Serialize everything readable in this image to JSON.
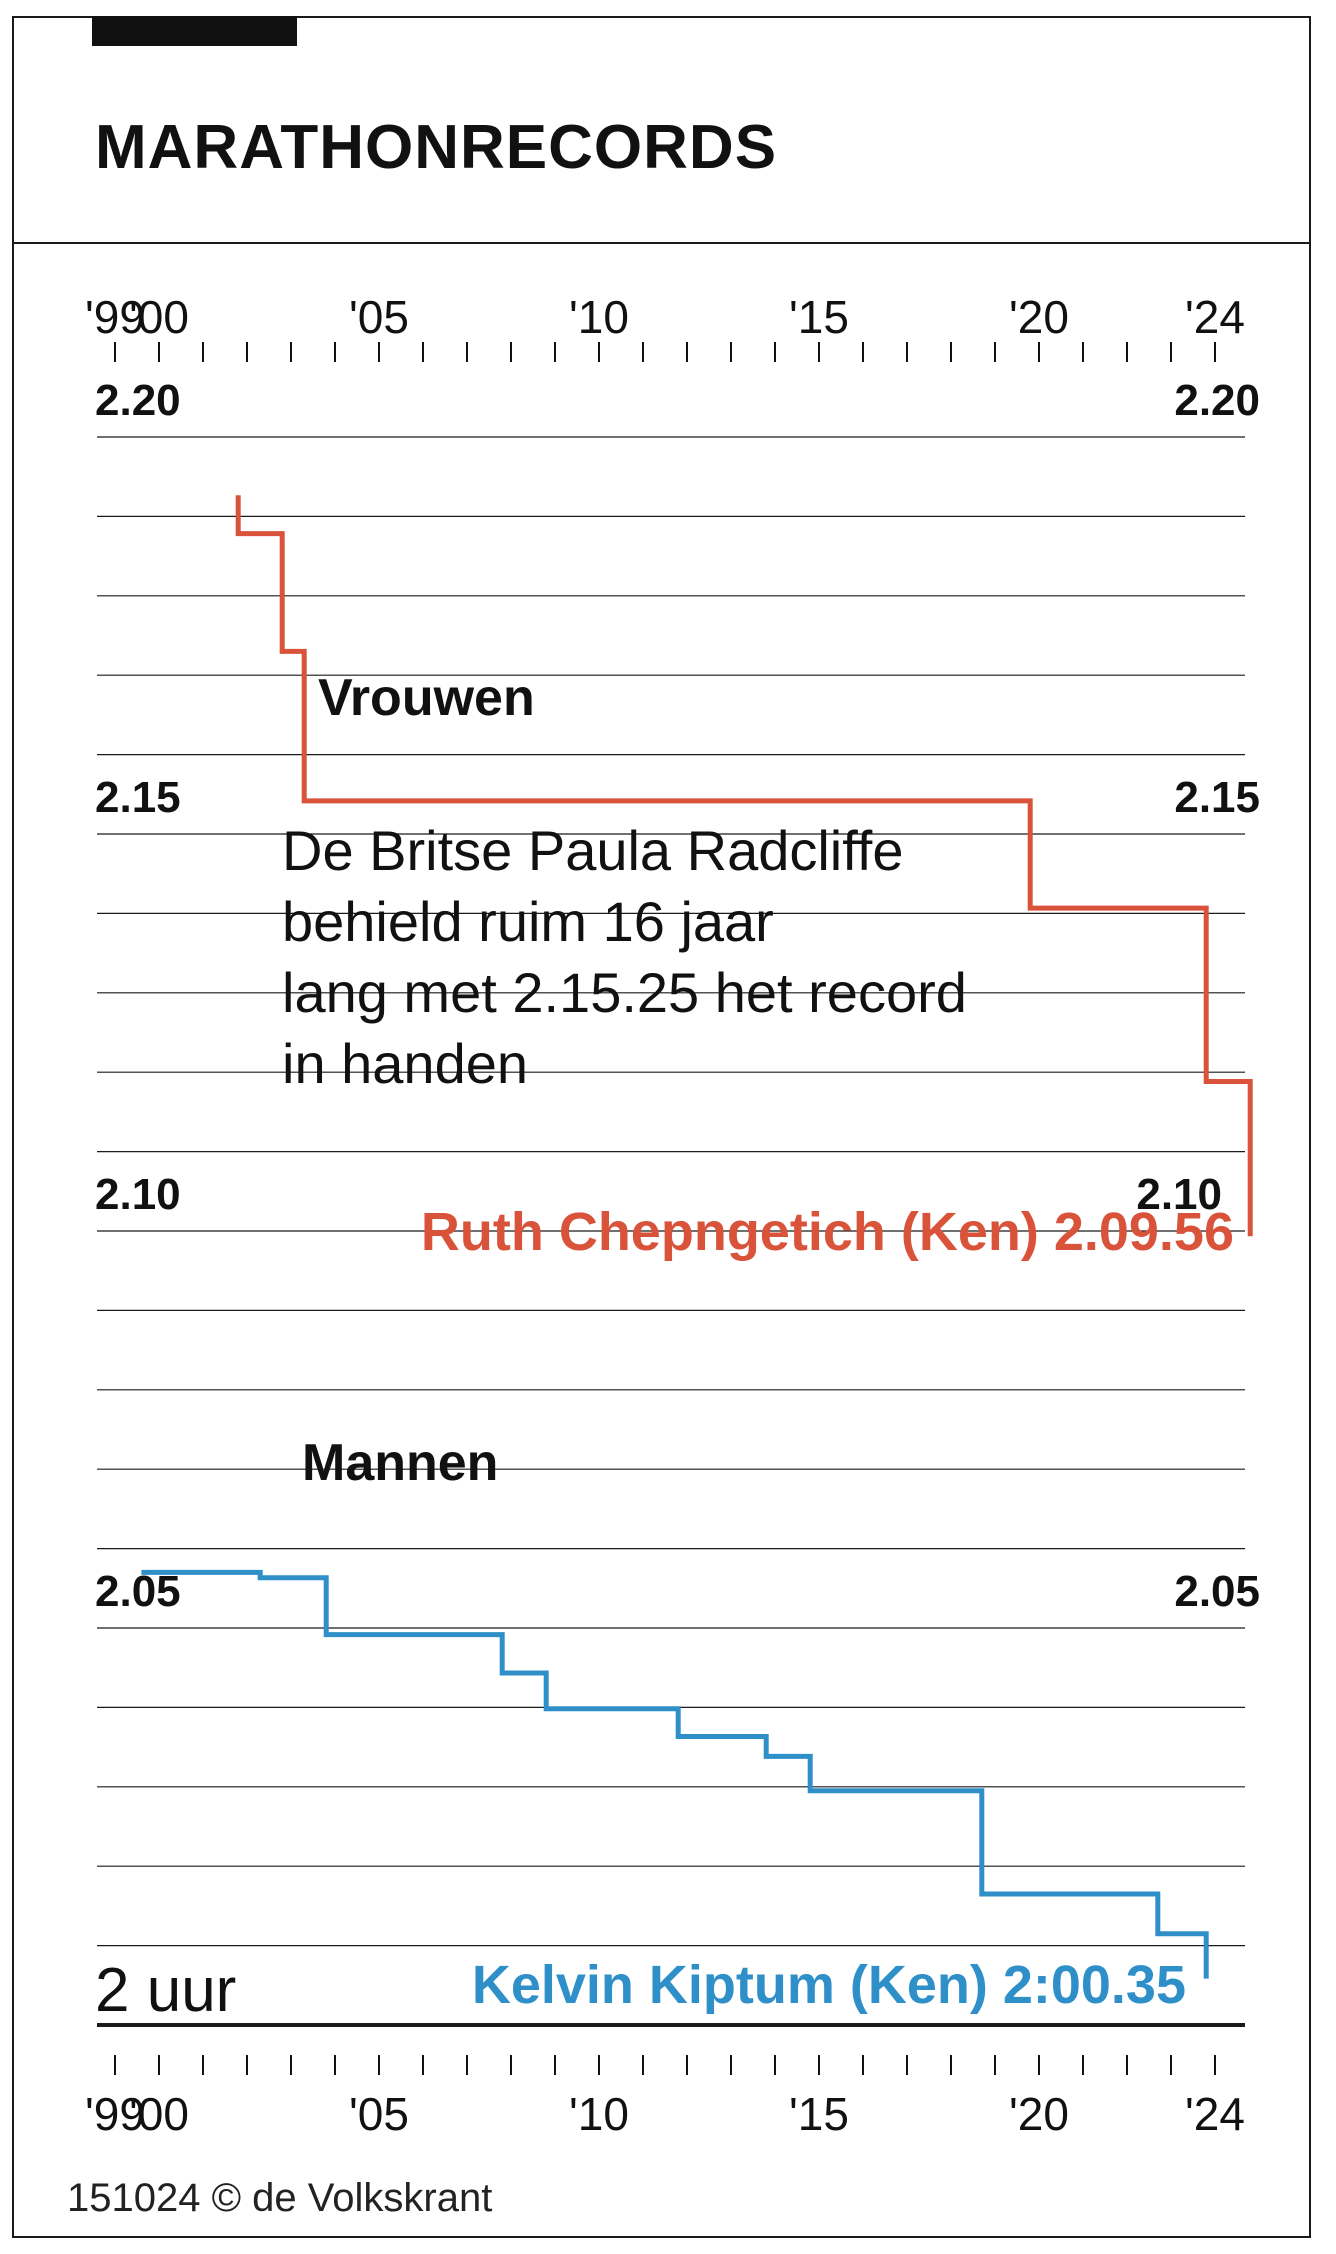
{
  "title": "MARATHONRECORDS",
  "source": "151024 © de Volkskrant",
  "chart_data": {
    "type": "line",
    "step": true,
    "x_tick_labels": [
      "'99",
      "'00",
      "'05",
      "'10",
      "'15",
      "'20",
      "'24"
    ],
    "x_tick_label_years": [
      1999,
      2000,
      2005,
      2010,
      2015,
      2020,
      2024
    ],
    "xlim": [
      1999,
      2024
    ],
    "ylim": [
      "2:00:00",
      "2:20:00"
    ],
    "y_tick_labels": [
      {
        "label": "2.20",
        "value": "2:20:00"
      },
      {
        "label": "2.15",
        "value": "2:15:00"
      },
      {
        "label": "2.10",
        "value": "2:10:00"
      },
      {
        "label": "2.05",
        "value": "2:05:00"
      },
      {
        "label": "2 uur",
        "value": "2:00:00"
      }
    ],
    "grid": true,
    "series": [
      {
        "name": "Vrouwen",
        "color": "#d9533b",
        "points": [
          {
            "x": 2001.8,
            "y": "2:19:16"
          },
          {
            "x": 2001.8,
            "y": "2:18:47"
          },
          {
            "x": 2002.8,
            "y": "2:18:47"
          },
          {
            "x": 2002.8,
            "y": "2:17:18"
          },
          {
            "x": 2003.3,
            "y": "2:17:18"
          },
          {
            "x": 2003.3,
            "y": "2:15:25"
          },
          {
            "x": 2019.8,
            "y": "2:15:25"
          },
          {
            "x": 2019.8,
            "y": "2:14:04"
          },
          {
            "x": 2023.8,
            "y": "2:14:04"
          },
          {
            "x": 2023.8,
            "y": "2:11:53"
          },
          {
            "x": 2024.8,
            "y": "2:11:53"
          },
          {
            "x": 2024.8,
            "y": "2:09:56"
          }
        ],
        "end_label": "Ruth Chepngetich (Ken) 2.09.56"
      },
      {
        "name": "Mannen",
        "color": "#2f8fc8",
        "points": [
          {
            "x": 1999.6,
            "y": "2:05:42"
          },
          {
            "x": 2002.3,
            "y": "2:05:42"
          },
          {
            "x": 2002.3,
            "y": "2:05:38"
          },
          {
            "x": 2003.8,
            "y": "2:05:38"
          },
          {
            "x": 2003.8,
            "y": "2:04:55"
          },
          {
            "x": 2007.8,
            "y": "2:04:55"
          },
          {
            "x": 2007.8,
            "y": "2:04:26"
          },
          {
            "x": 2008.8,
            "y": "2:04:26"
          },
          {
            "x": 2008.8,
            "y": "2:03:59"
          },
          {
            "x": 2011.8,
            "y": "2:03:59"
          },
          {
            "x": 2011.8,
            "y": "2:03:38"
          },
          {
            "x": 2013.8,
            "y": "2:03:38"
          },
          {
            "x": 2013.8,
            "y": "2:03:23"
          },
          {
            "x": 2014.8,
            "y": "2:03:23"
          },
          {
            "x": 2014.8,
            "y": "2:02:57"
          },
          {
            "x": 2018.7,
            "y": "2:02:57"
          },
          {
            "x": 2018.7,
            "y": "2:01:39"
          },
          {
            "x": 2022.7,
            "y": "2:01:39"
          },
          {
            "x": 2022.7,
            "y": "2:01:09"
          },
          {
            "x": 2023.8,
            "y": "2:01:09"
          },
          {
            "x": 2023.8,
            "y": "2:00:35"
          }
        ],
        "end_label": "Kelvin Kiptum (Ken) 2:00.35"
      }
    ],
    "annotation": "De Britse Paula Radcliffe behield ruim 16 jaar lang met 2.15.25 het record in handen",
    "colors": {
      "women": "#d9533b",
      "men": "#2f8fc8",
      "grid": "#1a1a1a"
    }
  }
}
